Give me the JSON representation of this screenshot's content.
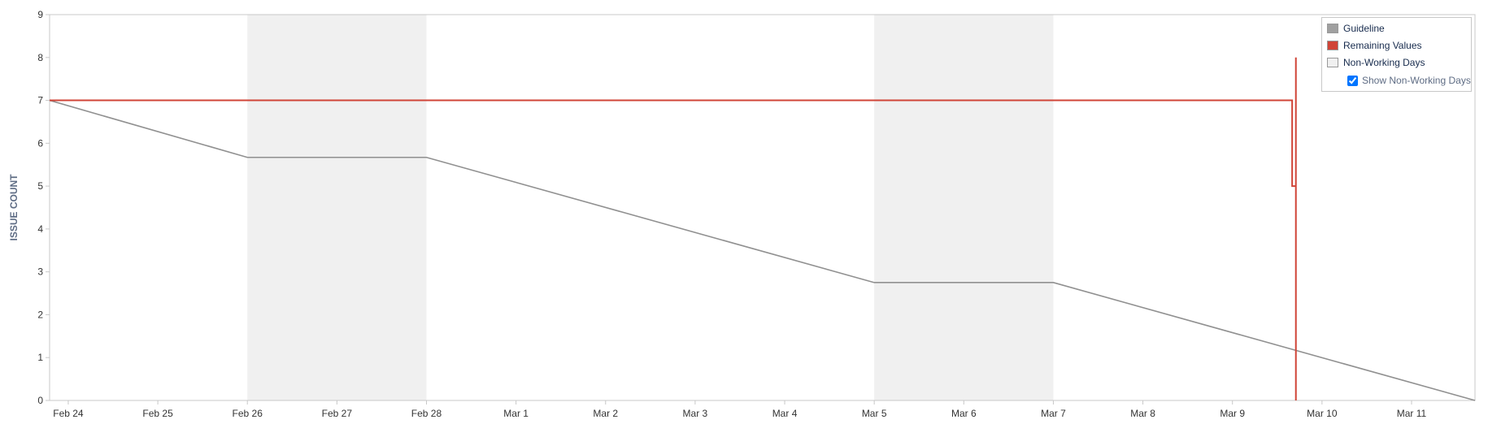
{
  "chart_data": {
    "type": "line",
    "ylabel": "ISSUE COUNT",
    "xlabel": "",
    "ylim": [
      0,
      9
    ],
    "yticks": [
      "0",
      "1",
      "2",
      "3",
      "4",
      "5",
      "6",
      "7",
      "8",
      "9"
    ],
    "x_range": [
      "2025-02-23T19:00",
      "2025-03-11T17:00"
    ],
    "xticks": [
      {
        "date": "2025-02-24",
        "label": "Feb 24"
      },
      {
        "date": "2025-02-25",
        "label": "Feb 25"
      },
      {
        "date": "2025-02-26",
        "label": "Feb 26"
      },
      {
        "date": "2025-02-27",
        "label": "Feb 27"
      },
      {
        "date": "2025-02-28",
        "label": "Feb 28"
      },
      {
        "date": "2025-03-01",
        "label": "Mar 1"
      },
      {
        "date": "2025-03-02",
        "label": "Mar 2"
      },
      {
        "date": "2025-03-03",
        "label": "Mar 3"
      },
      {
        "date": "2025-03-04",
        "label": "Mar 4"
      },
      {
        "date": "2025-03-05",
        "label": "Mar 5"
      },
      {
        "date": "2025-03-06",
        "label": "Mar 6"
      },
      {
        "date": "2025-03-07",
        "label": "Mar 7"
      },
      {
        "date": "2025-03-08",
        "label": "Mar 8"
      },
      {
        "date": "2025-03-09",
        "label": "Mar 9"
      },
      {
        "date": "2025-03-10",
        "label": "Mar 10"
      },
      {
        "date": "2025-03-11",
        "label": "Mar 11"
      }
    ],
    "non_working_days": [
      {
        "start": "2025-02-26",
        "end": "2025-02-28"
      },
      {
        "start": "2025-03-05",
        "end": "2025-03-07"
      }
    ],
    "series": [
      {
        "name": "Guideline",
        "color": "#909090",
        "points": [
          {
            "x": "2025-02-23T19:00",
            "y": 7
          },
          {
            "x": "2025-02-26T00:00",
            "y": 5.67
          },
          {
            "x": "2025-02-28T00:00",
            "y": 5.67
          },
          {
            "x": "2025-03-05T00:00",
            "y": 2.75
          },
          {
            "x": "2025-03-07T00:00",
            "y": 2.75
          },
          {
            "x": "2025-03-11T17:00",
            "y": 0
          }
        ]
      },
      {
        "name": "Remaining Values",
        "color": "#d04437",
        "points": [
          {
            "x": "2025-02-23T19:00",
            "y": 7
          },
          {
            "x": "2025-03-09T16:00",
            "y": 7
          },
          {
            "x": "2025-03-09T16:00",
            "y": 5
          },
          {
            "x": "2025-03-09T17:00",
            "y": 5
          },
          {
            "x": "2025-03-09T17:00",
            "y": 8
          },
          {
            "x": "2025-03-09T17:00",
            "y": 0
          }
        ]
      }
    ],
    "legend": {
      "position": "top-right",
      "items": [
        {
          "label": "Guideline",
          "color": "#a0a0a0"
        },
        {
          "label": "Remaining Values",
          "color": "#d04437"
        },
        {
          "label": "Non-Working Days",
          "color": "#f0f0f0"
        }
      ],
      "toggle_label": "Show Non-Working Days",
      "toggle_checked": true
    },
    "grid": false
  }
}
